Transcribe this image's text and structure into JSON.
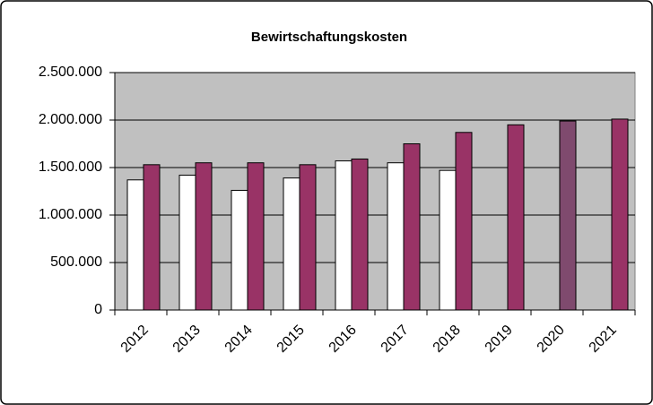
{
  "chart_data": {
    "type": "bar",
    "title": "Bewirtschaftungskosten",
    "categories": [
      "2012",
      "2013",
      "2014",
      "2015",
      "2016",
      "2017",
      "2018",
      "2019",
      "2020",
      "2021"
    ],
    "series": [
      {
        "color": "#ffffff",
        "values": [
          1370000,
          1420000,
          1260000,
          1390000,
          1570000,
          1550000,
          1470000,
          null,
          null,
          null
        ]
      },
      {
        "color": "#993366",
        "colors": [
          "#993366",
          "#993366",
          "#993366",
          "#993366",
          "#993366",
          "#993366",
          "#993366",
          "#993366",
          "#7f4a6e",
          "#993366"
        ],
        "values": [
          1530000,
          1550000,
          1550000,
          1530000,
          1590000,
          1750000,
          1870000,
          1950000,
          1990000,
          2010000
        ]
      }
    ],
    "ylim": [
      0,
      2500000
    ],
    "yticks": [
      0,
      {
        "value": 500000,
        "label": "500.000"
      },
      {
        "value": 1000000,
        "label": "1.000.000"
      },
      {
        "value": 1500000,
        "label": "1.500.000"
      },
      {
        "value": 2000000,
        "label": "2.000.000"
      },
      {
        "value": 2500000,
        "label": "2.500.000"
      }
    ],
    "grid": true,
    "plot_background": "#c0c0c0"
  }
}
